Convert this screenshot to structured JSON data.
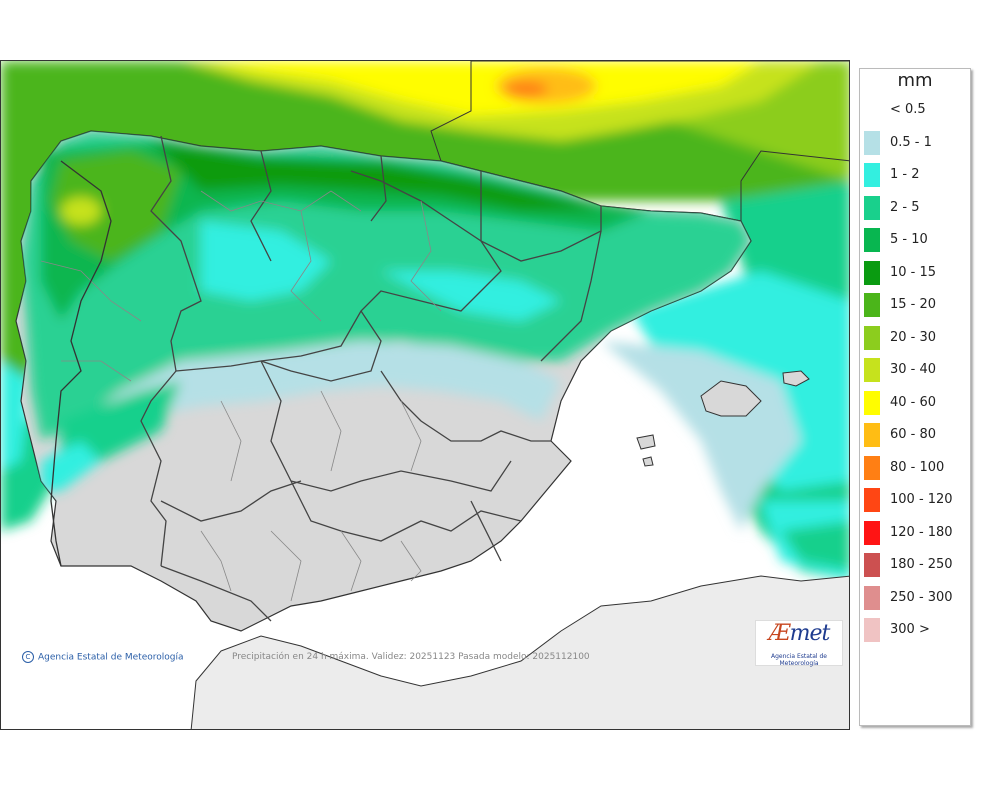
{
  "map": {
    "caption": "Precipitación en 24 h máxima. Validez: 20251123 Pasada modelo: 2025112100",
    "credit": "Agencia Estatal de Meteorología",
    "copyright_symbol": "C"
  },
  "logo": {
    "mark_a": "Æ",
    "mark_rest": "met",
    "subtitle": "Agencia Estatal de Meteorología"
  },
  "legend": {
    "unit": "mm",
    "items": [
      {
        "label": "< 0.5",
        "color": "#ffffff"
      },
      {
        "label": "0.5 - 1",
        "color": "#b5e0e6"
      },
      {
        "label": "1 - 2",
        "color": "#33efe0"
      },
      {
        "label": "2 - 5",
        "color": "#19d08c"
      },
      {
        "label": "5 - 10",
        "color": "#08b650"
      },
      {
        "label": "10 - 15",
        "color": "#0a9b11"
      },
      {
        "label": "15 - 20",
        "color": "#4bb51a"
      },
      {
        "label": "20 - 30",
        "color": "#8ccd1e"
      },
      {
        "label": "30 - 40",
        "color": "#c6e21d"
      },
      {
        "label": "40 - 60",
        "color": "#fffd00"
      },
      {
        "label": "60 - 80",
        "color": "#ffbd14"
      },
      {
        "label": "80 - 100",
        "color": "#ff7f14"
      },
      {
        "label": "100 - 120",
        "color": "#ff4614"
      },
      {
        "label": "120 - 180",
        "color": "#ff1414"
      },
      {
        "label": "180 - 250",
        "color": "#cc5050"
      },
      {
        "label": "250 - 300",
        "color": "#df8e8e"
      },
      {
        "label": "300 >",
        "color": "#f0c3c3"
      }
    ]
  }
}
